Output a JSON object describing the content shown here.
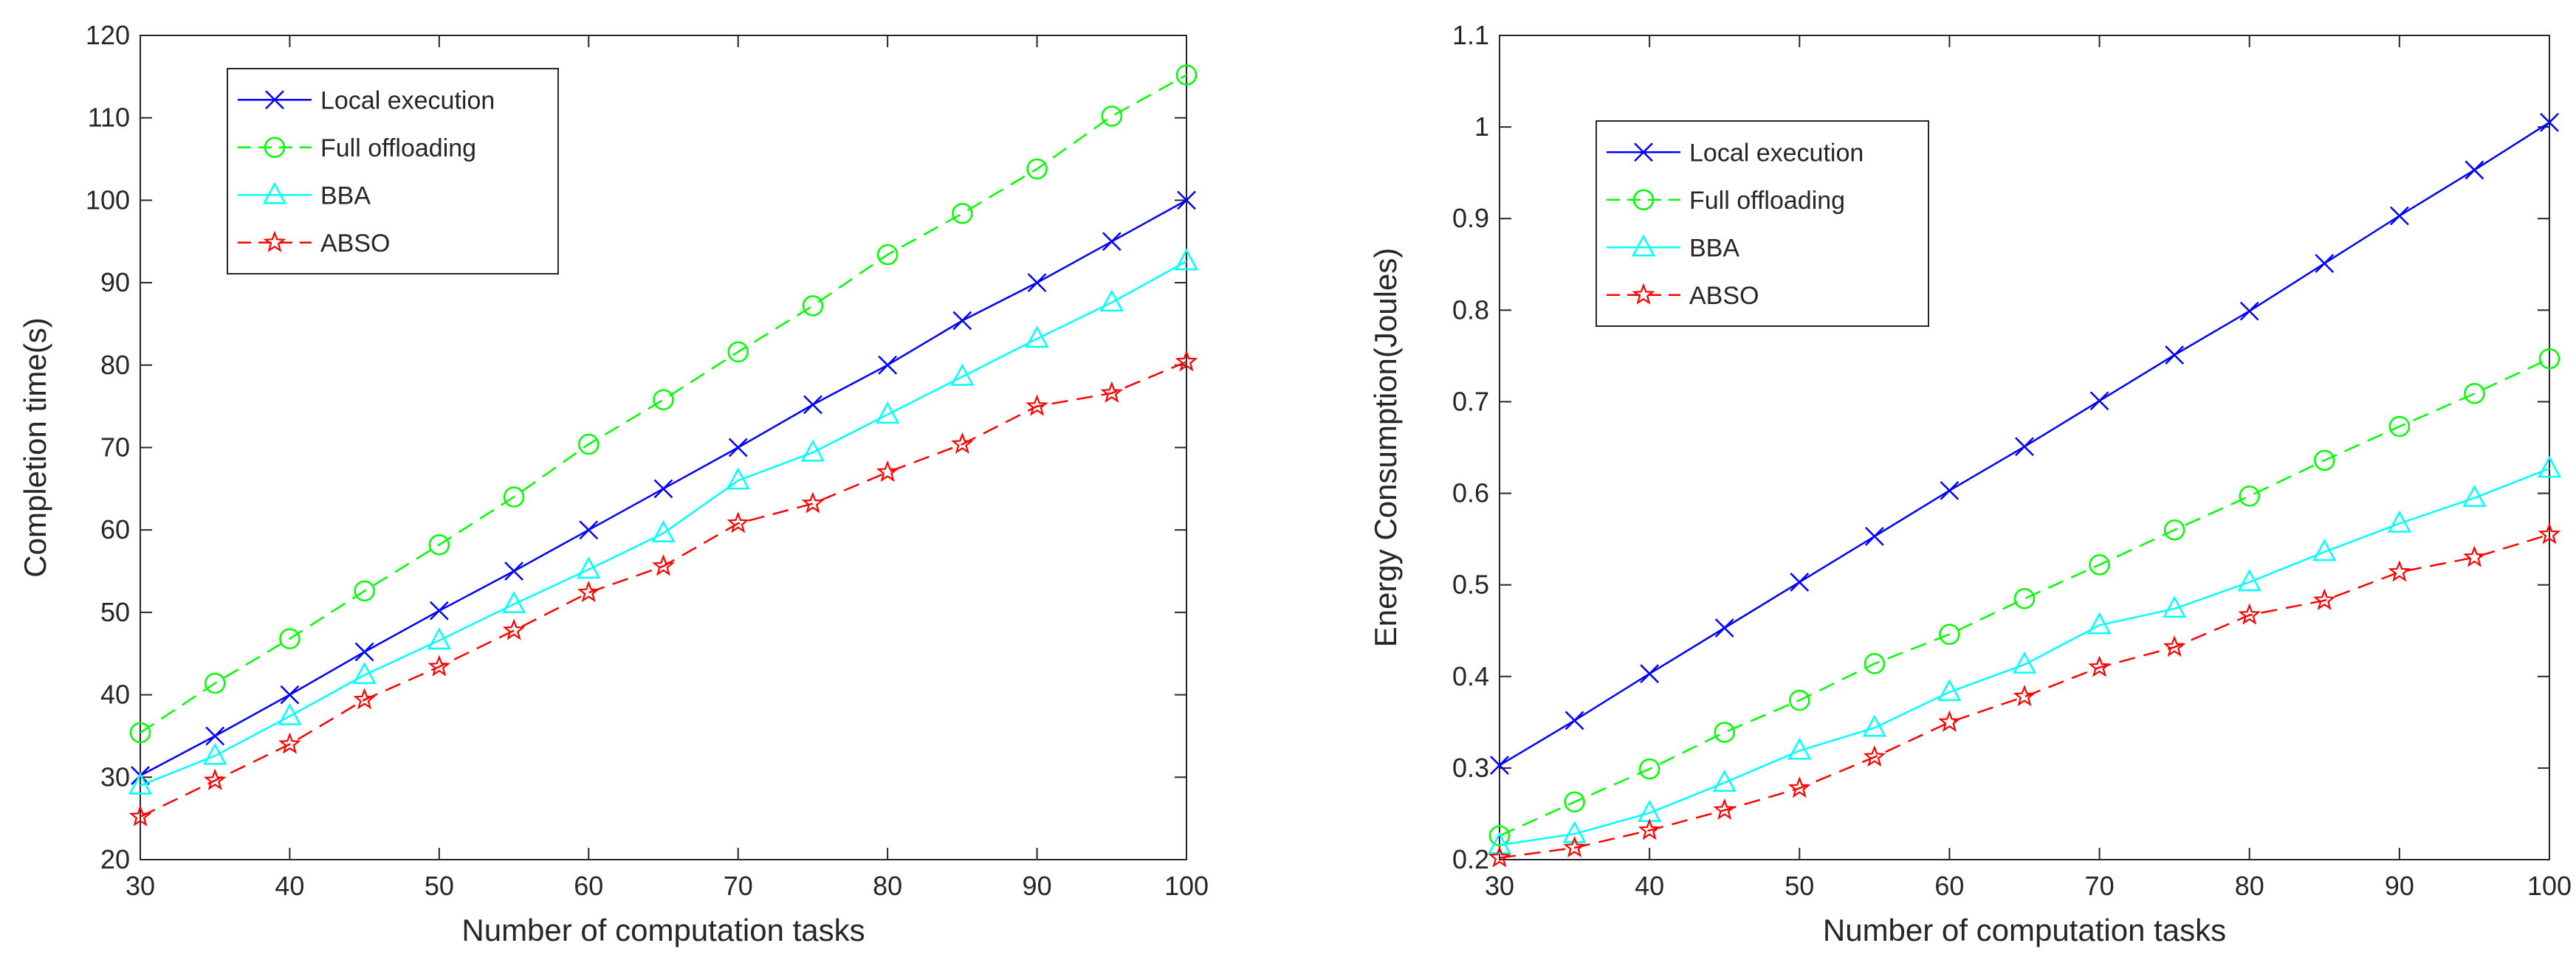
{
  "chart_data": [
    {
      "type": "line",
      "title": "",
      "xlabel": "Number of computation tasks",
      "ylabel": "Completion time(s)",
      "xlim": [
        30,
        100
      ],
      "ylim": [
        20,
        120
      ],
      "xticks": [
        30,
        40,
        50,
        60,
        70,
        80,
        90,
        100
      ],
      "yticks": [
        20,
        30,
        40,
        50,
        60,
        70,
        80,
        90,
        100,
        110,
        120
      ],
      "grid": false,
      "legend_position": "top-left",
      "x": [
        30,
        35,
        40,
        45,
        50,
        55,
        60,
        65,
        70,
        75,
        80,
        85,
        90,
        95,
        100
      ],
      "series": [
        {
          "name": "Local execution",
          "color": "#0000ff",
          "dash": "solid",
          "marker": "x",
          "values": [
            30.2,
            35.0,
            40.0,
            45.2,
            50.2,
            55.0,
            60.0,
            65.0,
            70.0,
            75.2,
            80.0,
            85.4,
            90.0,
            95.0,
            100.0
          ]
        },
        {
          "name": "Full offloading",
          "color": "#00ff00",
          "dash": "dashed",
          "marker": "circle",
          "values": [
            35.4,
            41.4,
            46.8,
            52.6,
            58.2,
            64.0,
            70.4,
            75.8,
            81.6,
            87.2,
            93.4,
            98.4,
            103.8,
            110.2,
            115.2
          ]
        },
        {
          "name": "BBA",
          "color": "#00ffff",
          "dash": "solid",
          "marker": "triangle",
          "values": [
            29.0,
            32.6,
            37.4,
            42.4,
            46.6,
            51.0,
            55.2,
            59.6,
            66.0,
            69.4,
            74.0,
            78.6,
            83.2,
            87.6,
            92.6
          ]
        },
        {
          "name": "ABSO",
          "color": "#ff0000",
          "dash": "dashed",
          "marker": "star",
          "values": [
            25.2,
            29.6,
            34.0,
            39.4,
            43.4,
            47.8,
            52.4,
            55.6,
            60.8,
            63.2,
            67.0,
            70.4,
            75.0,
            76.6,
            80.4
          ]
        }
      ]
    },
    {
      "type": "line",
      "title": "",
      "xlabel": "Number of computation tasks",
      "ylabel": "Energy Consumption(Joules)",
      "xlim": [
        30,
        100
      ],
      "ylim": [
        0.2,
        1.1
      ],
      "xticks": [
        30,
        40,
        50,
        60,
        70,
        80,
        90,
        100
      ],
      "yticks": [
        0.2,
        0.3,
        0.4,
        0.5,
        0.6,
        0.7,
        0.8,
        0.9,
        1.0,
        1.1
      ],
      "ytick_labels": [
        "0.2",
        "0.3",
        "0.4",
        "0.5",
        "0.6",
        "0.7",
        "0.8",
        "0.9",
        "1",
        "1.1"
      ],
      "grid": false,
      "legend_position": "top-left",
      "x": [
        30,
        35,
        40,
        45,
        50,
        55,
        60,
        65,
        70,
        75,
        80,
        85,
        90,
        95,
        100
      ],
      "series": [
        {
          "name": "Local execution",
          "color": "#0000ff",
          "dash": "solid",
          "marker": "x",
          "values": [
            0.303,
            0.352,
            0.403,
            0.453,
            0.503,
            0.553,
            0.603,
            0.651,
            0.701,
            0.751,
            0.799,
            0.851,
            0.903,
            0.953,
            1.005
          ]
        },
        {
          "name": "Full offloading",
          "color": "#00ff00",
          "dash": "dashed",
          "marker": "circle",
          "values": [
            0.226,
            0.263,
            0.299,
            0.339,
            0.374,
            0.414,
            0.446,
            0.485,
            0.522,
            0.56,
            0.597,
            0.636,
            0.673,
            0.709,
            0.747
          ]
        },
        {
          "name": "BBA",
          "color": "#00ffff",
          "dash": "solid",
          "marker": "triangle",
          "values": [
            0.216,
            0.228,
            0.251,
            0.284,
            0.319,
            0.344,
            0.383,
            0.413,
            0.456,
            0.474,
            0.503,
            0.536,
            0.567,
            0.595,
            0.627
          ]
        },
        {
          "name": "ABSO",
          "color": "#ff0000",
          "dash": "dashed",
          "marker": "star",
          "values": [
            0.202,
            0.213,
            0.232,
            0.254,
            0.278,
            0.312,
            0.35,
            0.378,
            0.41,
            0.432,
            0.467,
            0.483,
            0.514,
            0.53,
            0.555
          ]
        }
      ]
    }
  ]
}
